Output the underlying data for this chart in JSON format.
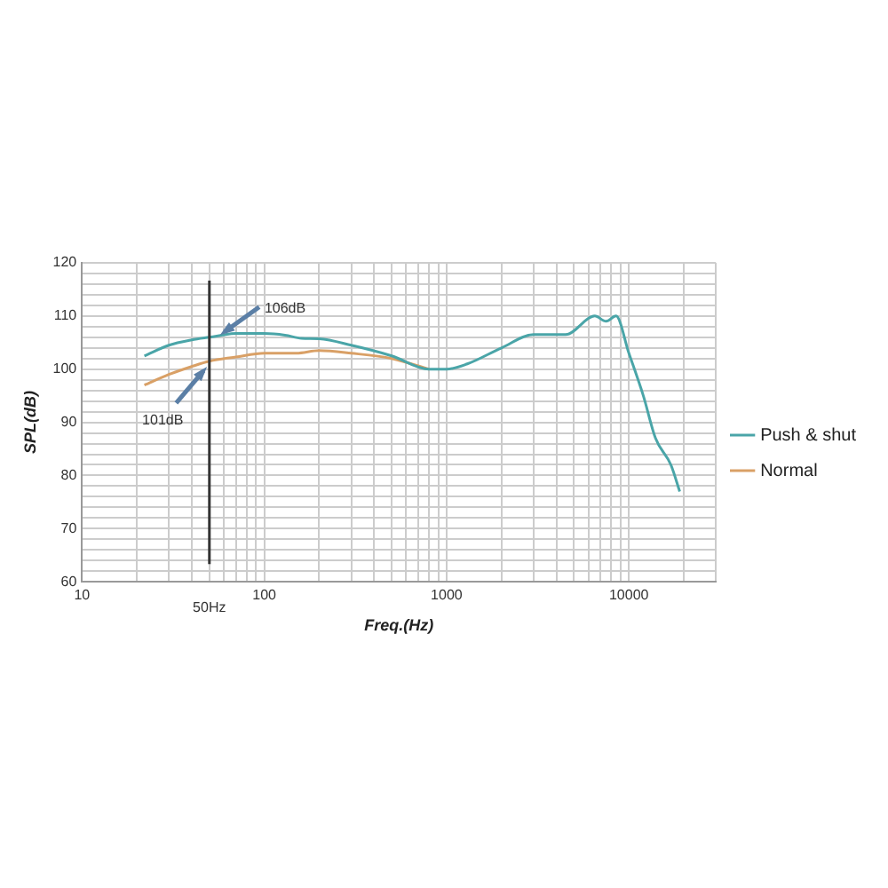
{
  "chart_data": {
    "type": "line",
    "xlabel": "Freq.(Hz)",
    "ylabel": "SPL(dB)",
    "xlim": [
      10,
      30000
    ],
    "xticks": [
      10,
      {
        "value": 20,
        "label": null
      },
      {
        "value": 30,
        "label": null
      },
      {
        "value": 40,
        "label": null
      },
      {
        "value": 50,
        "label": null
      },
      {
        "value": 60,
        "label": null
      },
      {
        "value": 70,
        "label": null
      },
      {
        "value": 80,
        "label": null
      },
      {
        "value": 90,
        "label": null
      },
      100,
      {
        "value": 200,
        "label": null
      },
      {
        "value": 300,
        "label": null
      },
      {
        "value": 400,
        "label": null
      },
      {
        "value": 500,
        "label": null
      },
      {
        "value": 600,
        "label": null
      },
      {
        "value": 700,
        "label": null
      },
      {
        "value": 800,
        "label": null
      },
      {
        "value": 900,
        "label": null
      },
      1000,
      {
        "value": 2000,
        "label": null
      },
      {
        "value": 3000,
        "label": null
      },
      {
        "value": 4000,
        "label": null
      },
      {
        "value": 5000,
        "label": null
      },
      {
        "value": 6000,
        "label": null
      },
      {
        "value": 7000,
        "label": null
      },
      {
        "value": 8000,
        "label": null
      },
      {
        "value": 9000,
        "label": null
      },
      10000,
      {
        "value": 20000,
        "label": null
      },
      {
        "value": 30000,
        "label": null
      }
    ],
    "ylim": [
      60,
      120
    ],
    "yticks": [
      60,
      {
        "value": 62,
        "label": null
      },
      {
        "value": 64,
        "label": null
      },
      {
        "value": 66,
        "label": null
      },
      {
        "value": 68,
        "label": null
      },
      70,
      {
        "value": 72,
        "label": null
      },
      {
        "value": 74,
        "label": null
      },
      {
        "value": 76,
        "label": null
      },
      {
        "value": 78,
        "label": null
      },
      80,
      {
        "value": 82,
        "label": null
      },
      {
        "value": 84,
        "label": null
      },
      {
        "value": 86,
        "label": null
      },
      {
        "value": 88,
        "label": null
      },
      90,
      {
        "value": 92,
        "label": null
      },
      {
        "value": 94,
        "label": null
      },
      {
        "value": 96,
        "label": null
      },
      {
        "value": 98,
        "label": null
      },
      100,
      {
        "value": 102,
        "label": null
      },
      {
        "value": 104,
        "label": null
      },
      {
        "value": 106,
        "label": null
      },
      {
        "value": 108,
        "label": null
      },
      110,
      {
        "value": 112,
        "label": null
      },
      {
        "value": 114,
        "label": null
      },
      {
        "value": 116,
        "label": null
      },
      {
        "value": 118,
        "label": null
      },
      120
    ],
    "log": "x",
    "grid": true,
    "legend": "right",
    "marker": "none",
    "line_style": "solid",
    "series": [
      {
        "name": "Push & shut",
        "color": "#4aa5a8",
        "x": [
          22,
          30,
          40,
          50,
          70,
          100,
          130,
          160,
          200,
          300,
          500,
          800,
          1000,
          1300,
          2000,
          3000,
          4500,
          6500,
          7500,
          8500,
          10000,
          12000,
          14000,
          17000,
          19000
        ],
        "values": [
          102.5,
          104.5,
          105.5,
          106,
          106.7,
          106.7,
          106.4,
          105.8,
          105.7,
          104.5,
          102.5,
          100,
          100,
          101,
          104,
          106.5,
          106.5,
          110,
          109,
          110,
          103,
          95,
          87,
          82,
          77
        ]
      },
      {
        "name": "Normal",
        "color": "#d9a066",
        "x": [
          22,
          30,
          40,
          50,
          70,
          100,
          150,
          200,
          300,
          500,
          800
        ],
        "values": [
          97,
          99,
          100.5,
          101.5,
          102.3,
          103,
          103,
          103.5,
          103,
          102,
          100
        ]
      }
    ],
    "ref_lines": [
      {
        "axis": "x",
        "value": 50,
        "label": "50Hz",
        "color": "#333333"
      }
    ],
    "annotations": [
      {
        "text": "106dB",
        "x": 55,
        "y": 106
      },
      {
        "text": "101dB",
        "x": 50,
        "y": 101
      }
    ]
  }
}
